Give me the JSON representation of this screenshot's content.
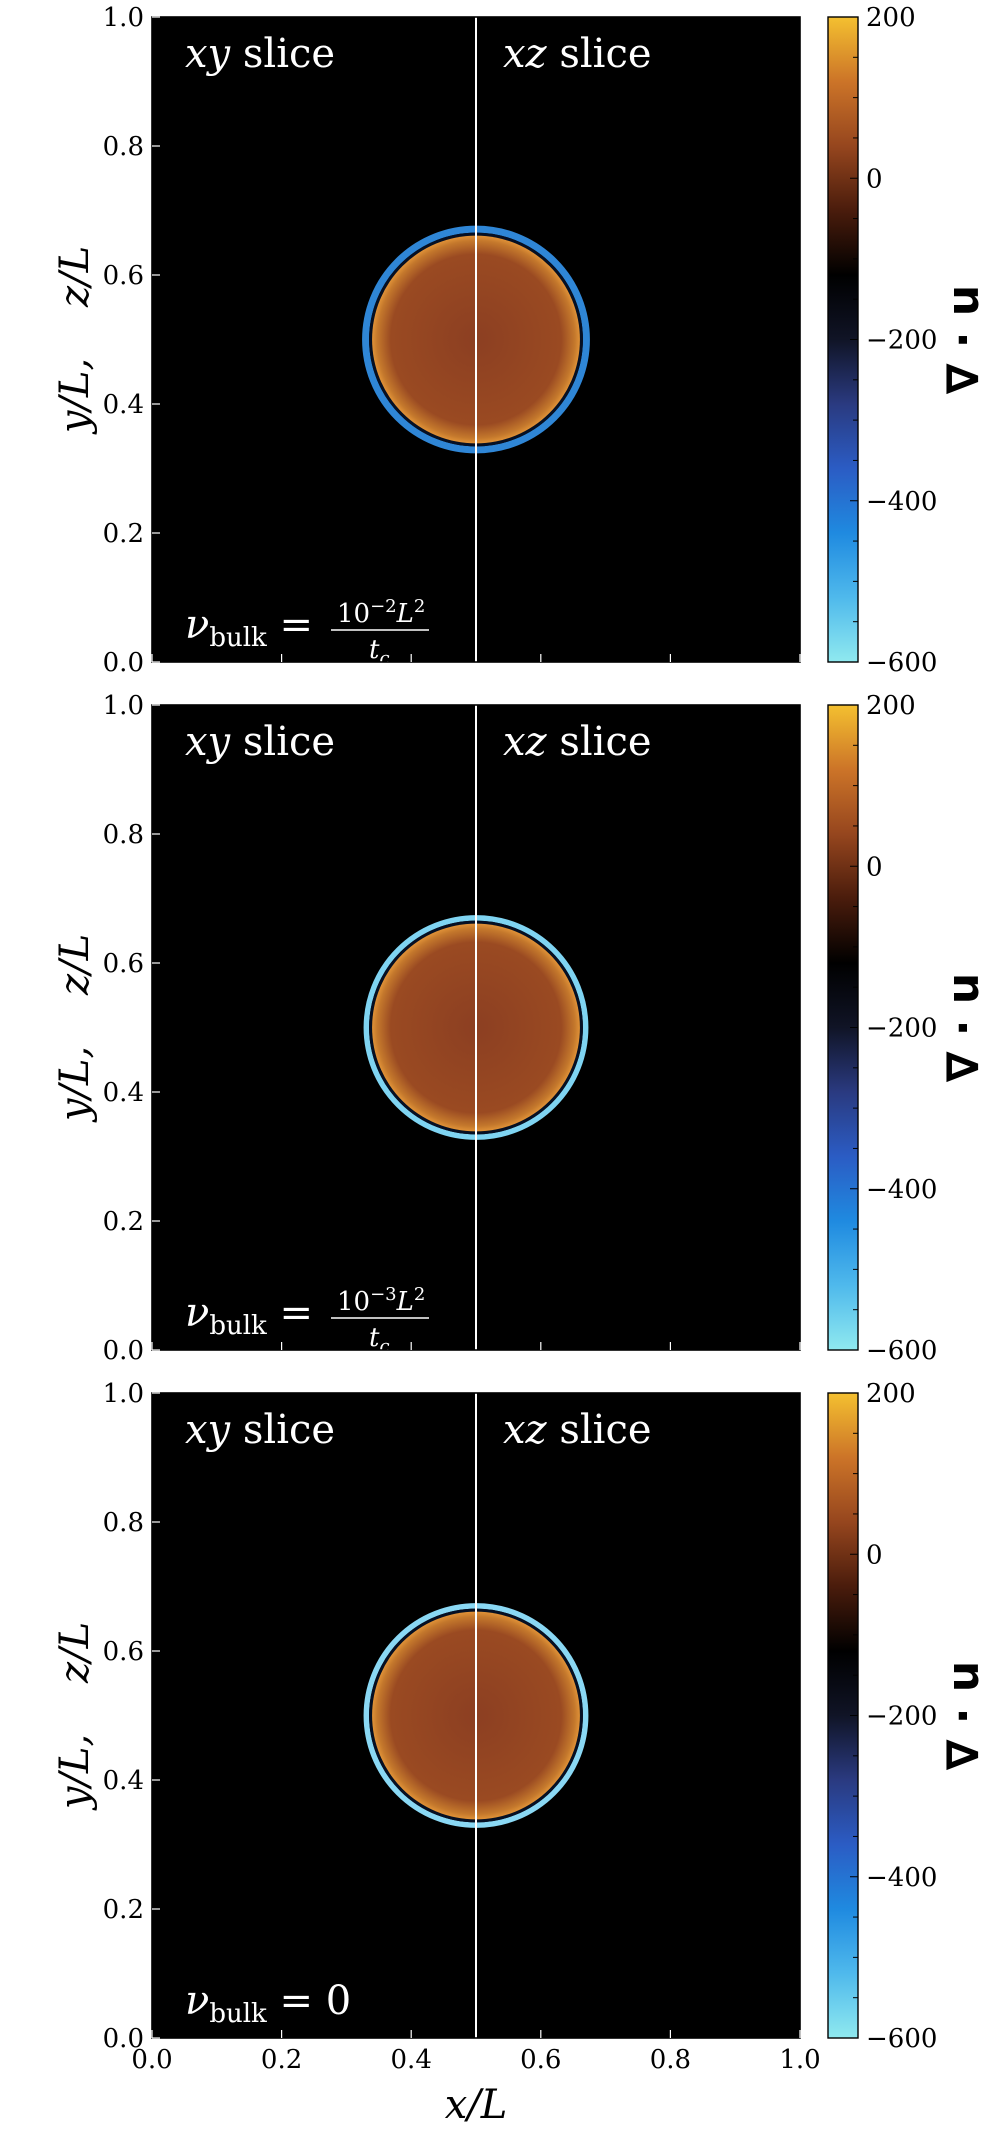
{
  "chart_data": {
    "type": "heatmap",
    "panels": [
      {
        "slice_labels": {
          "left": "xy slice",
          "right": "xz slice"
        },
        "annotation": {
          "symbol": "ν",
          "sub": "bulk",
          "equals": "=",
          "numerator": "10",
          "exponent": "−2",
          "num_tail": "L",
          "num_tail_exp": "2",
          "denominator": "t",
          "denominator_sub": "c"
        },
        "ring_edge_color": "#2f86d6",
        "ring_thickness": 5
      },
      {
        "slice_labels": {
          "left": "xy slice",
          "right": "xz slice"
        },
        "annotation": {
          "symbol": "ν",
          "sub": "bulk",
          "equals": "=",
          "numerator": "10",
          "exponent": "−3",
          "num_tail": "L",
          "num_tail_exp": "2",
          "denominator": "t",
          "denominator_sub": "c"
        },
        "ring_edge_color": "#7fd4f2",
        "ring_thickness": 3.5
      },
      {
        "slice_labels": {
          "left": "xy slice",
          "right": "xz slice"
        },
        "annotation": {
          "symbol": "ν",
          "sub": "bulk",
          "equals": "=",
          "value": "0"
        },
        "ring_edge_color": "#8ad8f4",
        "ring_thickness": 3.5
      }
    ],
    "feature": {
      "center_x": 0.5,
      "center_y": 0.5,
      "radius": 0.165,
      "interior_value": 120
    },
    "divider_x": 0.5,
    "xlim": [
      0,
      1
    ],
    "ylim": [
      0,
      1
    ],
    "xticks": [
      "0.0",
      "0.2",
      "0.4",
      "0.6",
      "0.8",
      "1.0"
    ],
    "yticks": [
      "0.0",
      "0.2",
      "0.4",
      "0.6",
      "0.8",
      "1.0"
    ],
    "xlabel": "x/L",
    "ylabel": "y/L,    z/L",
    "colorbar": {
      "label": "∇ · u",
      "range": [
        -600,
        200
      ],
      "ticks": [
        "200",
        "0",
        "−200",
        "−400",
        "−600"
      ],
      "tick_values": [
        200,
        0,
        -200,
        -400,
        -600
      ],
      "colors": [
        "#8fe9ef",
        "#4fb9ec",
        "#1f8ae0",
        "#2b5cc4",
        "#2a3a80",
        "#101426",
        "#000000",
        "#4a1c0c",
        "#96461e",
        "#cc7428",
        "#f4c030"
      ]
    }
  }
}
